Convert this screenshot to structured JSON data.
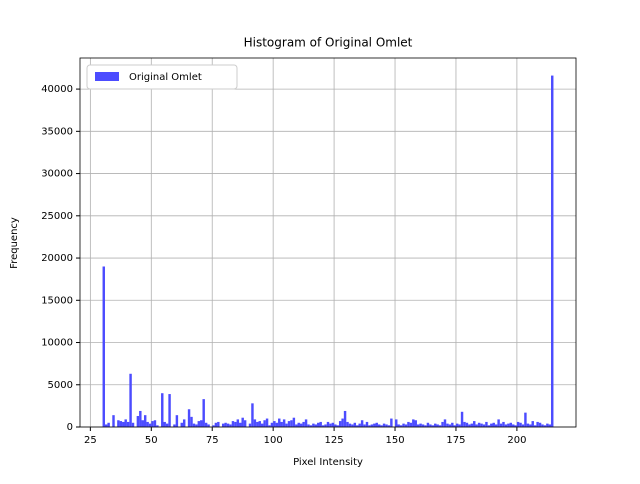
{
  "chart_data": {
    "type": "histogram",
    "title": "Histogram of Original Omlet",
    "xlabel": "Pixel Intensity",
    "ylabel": "Frequency",
    "series": [
      {
        "name": "Original Omlet",
        "color": "#4c4cff",
        "bins": [
          30,
          31,
          32,
          33,
          34,
          35,
          36,
          37,
          38,
          39,
          40,
          41,
          42,
          43,
          44,
          45,
          46,
          47,
          48,
          49,
          50,
          51,
          52,
          53,
          54,
          55,
          56,
          57,
          58,
          59,
          60,
          61,
          62,
          63,
          64,
          65,
          66,
          67,
          68,
          69,
          70,
          71,
          72,
          73,
          74,
          75,
          76,
          77,
          78,
          79,
          80,
          81,
          82,
          83,
          84,
          85,
          86,
          87,
          88,
          89,
          90,
          91,
          92,
          93,
          94,
          95,
          96,
          97,
          98,
          99,
          100,
          101,
          102,
          103,
          104,
          105,
          106,
          107,
          108,
          109,
          110,
          111,
          112,
          113,
          114,
          115,
          116,
          117,
          118,
          119,
          120,
          121,
          122,
          123,
          124,
          125,
          126,
          127,
          128,
          129,
          130,
          131,
          132,
          133,
          134,
          135,
          136,
          137,
          138,
          139,
          140,
          141,
          142,
          143,
          144,
          145,
          146,
          147,
          148,
          149,
          150,
          151,
          152,
          153,
          154,
          155,
          156,
          157,
          158,
          159,
          160,
          161,
          162,
          163,
          164,
          165,
          166,
          167,
          168,
          169,
          170,
          171,
          172,
          173,
          174,
          175,
          176,
          177,
          178,
          179,
          180,
          181,
          182,
          183,
          184,
          185,
          186,
          187,
          188,
          189,
          190,
          191,
          192,
          193,
          194,
          195,
          196,
          197,
          198,
          199,
          200,
          201,
          202,
          203,
          204,
          205,
          206,
          207,
          208,
          209,
          210,
          211,
          212,
          213,
          214,
          215
        ],
        "values": [
          19000,
          300,
          500,
          0,
          1400,
          0,
          800,
          700,
          600,
          900,
          600,
          6300,
          500,
          0,
          1300,
          1900,
          800,
          1400,
          600,
          400,
          700,
          800,
          200,
          0,
          4000,
          600,
          400,
          3900,
          0,
          300,
          1400,
          0,
          500,
          900,
          0,
          2100,
          1200,
          400,
          300,
          700,
          800,
          3300,
          500,
          300,
          0,
          200,
          500,
          600,
          0,
          400,
          500,
          400,
          300,
          700,
          600,
          900,
          500,
          1100,
          800,
          0,
          400,
          2800,
          900,
          600,
          700,
          400,
          800,
          1000,
          200,
          500,
          700,
          500,
          1000,
          600,
          900,
          400,
          700,
          800,
          1100,
          300,
          500,
          400,
          600,
          900,
          300,
          200,
          400,
          300,
          500,
          600,
          200,
          300,
          600,
          400,
          500,
          300,
          200,
          700,
          1000,
          1900,
          600,
          400,
          300,
          500,
          200,
          400,
          800,
          300,
          600,
          200,
          300,
          400,
          500,
          300,
          200,
          400,
          300,
          200,
          1000,
          0,
          900,
          300,
          200,
          400,
          300,
          600,
          500,
          900,
          800,
          300,
          400,
          300,
          200,
          500,
          300,
          200,
          400,
          300,
          200,
          600,
          900,
          400,
          300,
          500,
          200,
          400,
          300,
          1800,
          600,
          500,
          300,
          400,
          700,
          300,
          500,
          400,
          300,
          600,
          200,
          400,
          500,
          300,
          900,
          400,
          600,
          300,
          400,
          500,
          300,
          200,
          600,
          500,
          300,
          1700,
          400,
          300,
          700,
          200,
          600,
          500,
          300,
          200,
          400,
          300,
          41600
        ]
      }
    ],
    "xlim": [
      20.75,
      224.25
    ],
    "ylim": [
      0,
      43680
    ],
    "xticks": [
      25,
      50,
      75,
      100,
      125,
      150,
      175,
      200
    ],
    "yticks": [
      0,
      5000,
      10000,
      15000,
      20000,
      25000,
      30000,
      35000,
      40000
    ],
    "grid": true,
    "legend": "upper left"
  }
}
